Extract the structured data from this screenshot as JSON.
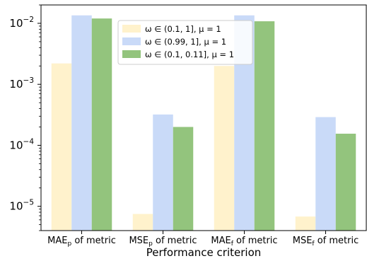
{
  "chart_data": {
    "type": "bar",
    "yscale": "log",
    "ylim": [
      4e-06,
      0.02
    ],
    "xlabel": "Performance criterion",
    "ylabel": "",
    "categories": [
      {
        "base": "MAE",
        "sub": "p",
        "rest": " of metric"
      },
      {
        "base": "MSE",
        "sub": "p",
        "rest": " of metric"
      },
      {
        "base": "MAE",
        "sub": "f",
        "rest": " of metric"
      },
      {
        "base": "MSE",
        "sub": "f",
        "rest": " of metric"
      }
    ],
    "yticks": [
      {
        "value": 0.01,
        "base": "10",
        "exp": "−2"
      },
      {
        "value": 0.001,
        "base": "10",
        "exp": "−3"
      },
      {
        "value": 0.0001,
        "base": "10",
        "exp": "−4"
      },
      {
        "value": 1e-05,
        "base": "10",
        "exp": "−5"
      }
    ],
    "series": [
      {
        "name": "ω ∈ (0.1, 1], μ = 1",
        "color": "#fff2cc",
        "values": [
          0.0022,
          7.5e-06,
          0.002,
          6.8e-06
        ]
      },
      {
        "name": "ω ∈ (0.99, 1], μ = 1",
        "color": "#c9daf8",
        "values": [
          0.0135,
          0.00032,
          0.0135,
          0.00029
        ]
      },
      {
        "name": "ω ∈ (0.1, 0.11], μ = 1",
        "color": "#93c47d",
        "values": [
          0.012,
          0.0002,
          0.0108,
          0.000155
        ]
      }
    ],
    "legend_position": "top-center",
    "grid": false
  }
}
